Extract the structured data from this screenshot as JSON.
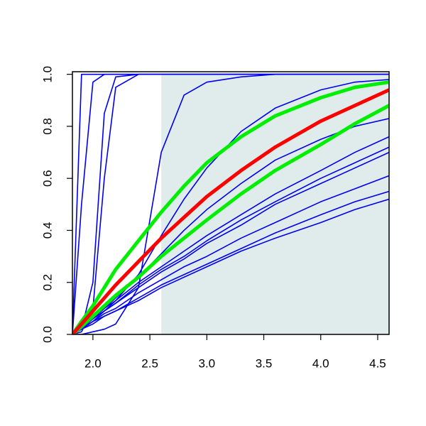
{
  "chart_data": {
    "type": "line",
    "x": [
      1.82,
      1.9,
      2.0,
      2.1,
      2.2,
      2.4,
      2.6,
      2.8,
      3.0,
      3.3,
      3.6,
      4.0,
      4.3,
      4.6
    ],
    "xlim": [
      1.82,
      4.6
    ],
    "ylim": [
      0,
      1.01
    ],
    "xticks": [
      {
        "value": 2,
        "label": "2.0"
      },
      2.5,
      {
        "value": 3,
        "label": "3.0"
      },
      3.5,
      {
        "value": 4,
        "label": "4.0"
      },
      4.5
    ],
    "yticks": [
      {
        "value": 0,
        "label": "0.0"
      },
      0.2,
      0.4,
      0.6,
      0.8,
      {
        "value": 1,
        "label": "1.0"
      }
    ],
    "shaded_region": {
      "x": [
        2.6,
        4.6
      ],
      "y": [
        0,
        1
      ],
      "color": "#e0ecec"
    },
    "series": [
      {
        "color": "#0000ee",
        "line_width": 1.6,
        "values": [
          0,
          1,
          1,
          1,
          1,
          1,
          1,
          1,
          1,
          1,
          1,
          1,
          1,
          1
        ]
      },
      {
        "color": "#0000ee",
        "line_width": 1.6,
        "values": [
          0,
          0.5,
          0.97,
          1,
          1,
          1,
          1,
          1,
          1,
          1,
          1,
          1,
          1,
          1
        ]
      },
      {
        "color": "#0000ee",
        "line_width": 1.6,
        "values": [
          0,
          0.02,
          0.2,
          0.85,
          0.99,
          1,
          1,
          1,
          1,
          1,
          1,
          1,
          1,
          1
        ]
      },
      {
        "color": "#0000ee",
        "line_width": 1.6,
        "values": [
          0,
          0.01,
          0.1,
          0.6,
          0.95,
          1,
          1,
          1,
          1,
          1,
          1,
          1,
          1,
          1
        ]
      },
      {
        "color": "#0000ee",
        "line_width": 1.6,
        "values": [
          0,
          0,
          0.01,
          0.02,
          0.04,
          0.18,
          0.7,
          0.92,
          0.97,
          0.99,
          1,
          1,
          1,
          1
        ]
      },
      {
        "color": "#0000ee",
        "line_width": 1.6,
        "values": [
          0,
          0.02,
          0.05,
          0.09,
          0.13,
          0.23,
          0.38,
          0.52,
          0.64,
          0.78,
          0.87,
          0.94,
          0.97,
          0.98
        ]
      },
      {
        "color": "#0000ee",
        "line_width": 1.6,
        "values": [
          0,
          0.02,
          0.06,
          0.1,
          0.14,
          0.22,
          0.31,
          0.4,
          0.48,
          0.58,
          0.67,
          0.75,
          0.8,
          0.83
        ]
      },
      {
        "color": "#0000ee",
        "line_width": 1.6,
        "values": [
          0,
          0.03,
          0.06,
          0.1,
          0.13,
          0.2,
          0.26,
          0.32,
          0.38,
          0.46,
          0.54,
          0.63,
          0.7,
          0.76
        ]
      },
      {
        "color": "#0000ee",
        "line_width": 1.6,
        "values": [
          0,
          0.03,
          0.06,
          0.09,
          0.12,
          0.19,
          0.25,
          0.3,
          0.36,
          0.44,
          0.51,
          0.6,
          0.66,
          0.72
        ]
      },
      {
        "color": "#0000ee",
        "line_width": 1.6,
        "values": [
          0,
          0.03,
          0.06,
          0.09,
          0.12,
          0.18,
          0.24,
          0.29,
          0.35,
          0.42,
          0.5,
          0.58,
          0.64,
          0.7
        ]
      },
      {
        "color": "#0000ee",
        "line_width": 1.6,
        "values": [
          0,
          0.02,
          0.05,
          0.08,
          0.1,
          0.16,
          0.21,
          0.26,
          0.3,
          0.37,
          0.43,
          0.51,
          0.56,
          0.61
        ]
      },
      {
        "color": "#0000ee",
        "line_width": 1.6,
        "values": [
          0,
          0.02,
          0.05,
          0.07,
          0.09,
          0.14,
          0.19,
          0.23,
          0.27,
          0.33,
          0.39,
          0.46,
          0.51,
          0.55
        ]
      },
      {
        "color": "#0000ee",
        "line_width": 1.6,
        "values": [
          0,
          0.02,
          0.04,
          0.07,
          0.09,
          0.13,
          0.18,
          0.22,
          0.26,
          0.32,
          0.37,
          0.43,
          0.48,
          0.52
        ]
      },
      {
        "color": "#00ee00",
        "line_width": 5,
        "values": [
          0,
          0.05,
          0.11,
          0.18,
          0.25,
          0.36,
          0.47,
          0.57,
          0.66,
          0.76,
          0.84,
          0.91,
          0.95,
          0.97
        ]
      },
      {
        "color": "#00ee00",
        "line_width": 5,
        "values": [
          0,
          0.03,
          0.07,
          0.11,
          0.15,
          0.22,
          0.3,
          0.37,
          0.44,
          0.54,
          0.63,
          0.73,
          0.81,
          0.88
        ]
      },
      {
        "color": "#ff0000",
        "line_width": 5,
        "values": [
          0,
          0.04,
          0.09,
          0.14,
          0.19,
          0.28,
          0.37,
          0.45,
          0.53,
          0.63,
          0.72,
          0.82,
          0.88,
          0.94
        ]
      }
    ]
  }
}
